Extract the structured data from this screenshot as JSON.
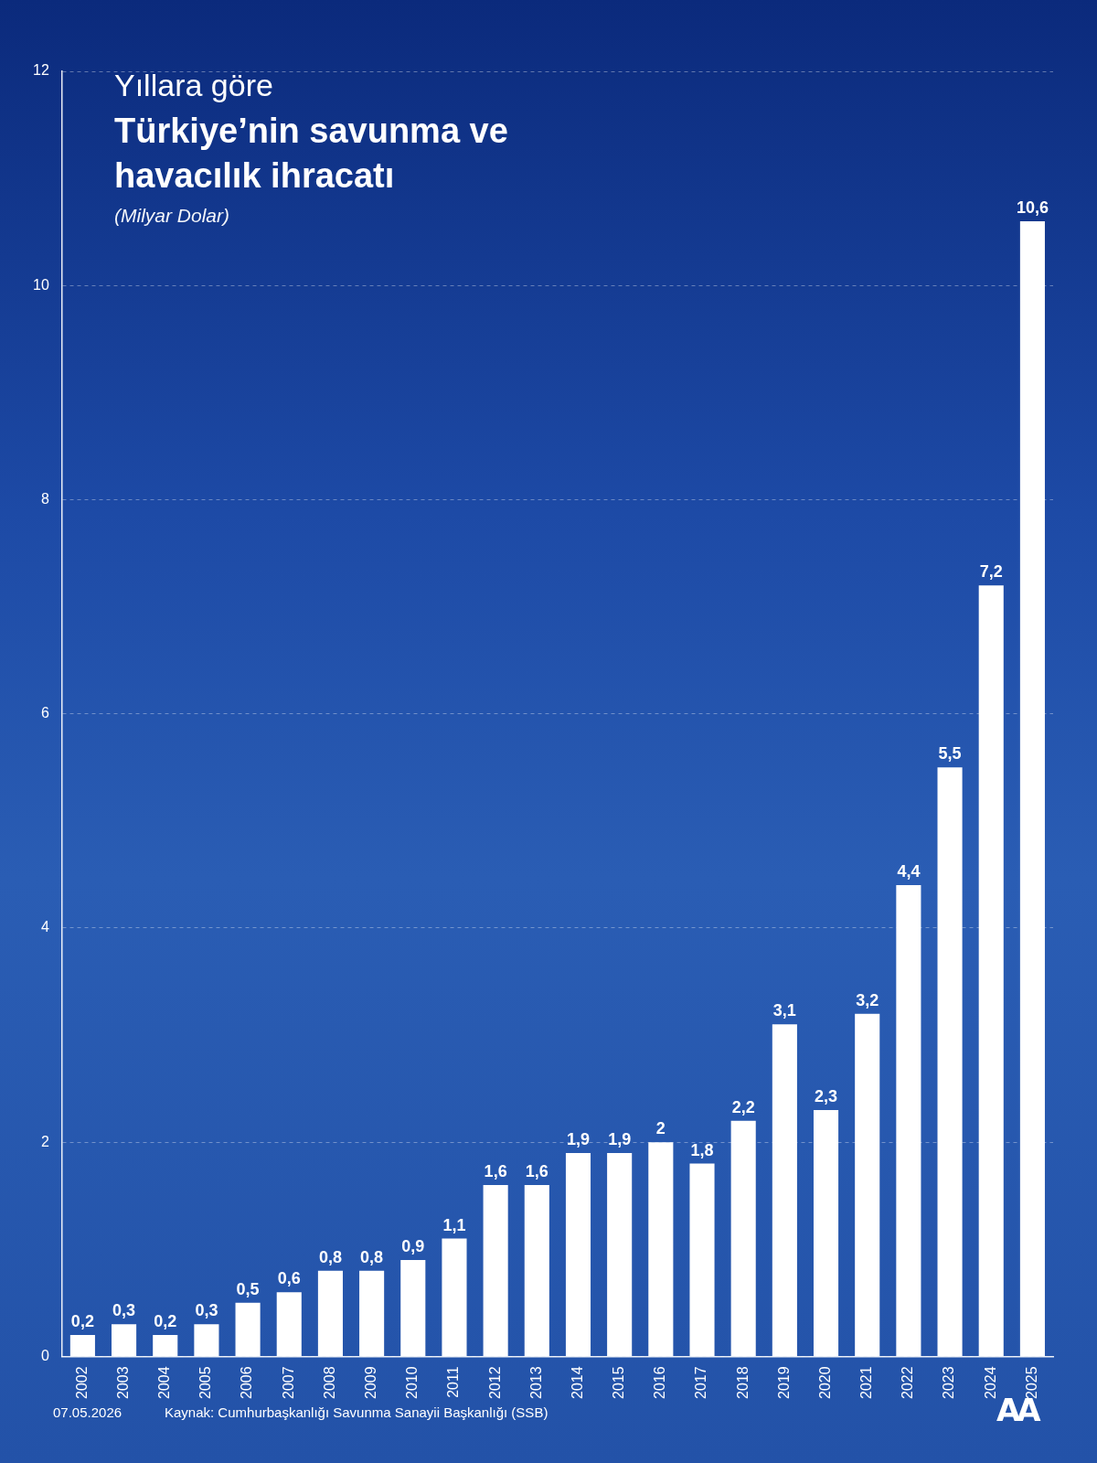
{
  "chart_data": {
    "type": "bar",
    "pretitle": "Yıllara göre",
    "title": "Türkiye’nin savunma ve havacılık ihracatı",
    "subtitle": "(Milyar Dolar)",
    "date": "07.05.2026",
    "source": "Kaynak: Cumhurbaşkanlığı Savunma Sanayii Başkanlığı (SSB)",
    "logo": "AA",
    "categories": [
      "2002",
      "2003",
      "2004",
      "2005",
      "2006",
      "2007",
      "2008",
      "2009",
      "2010",
      "2011",
      "2012",
      "2013",
      "2014",
      "2015",
      "2016",
      "2017",
      "2018",
      "2019",
      "2020",
      "2021",
      "2022",
      "2023",
      "2024",
      "2025"
    ],
    "values": [
      0.2,
      0.3,
      0.2,
      0.3,
      0.5,
      0.6,
      0.8,
      0.8,
      0.9,
      1.1,
      1.6,
      1.6,
      1.9,
      1.9,
      2,
      1.8,
      2.2,
      3.1,
      2.3,
      3.2,
      4.4,
      5.5,
      7.2,
      10.6
    ],
    "value_labels": [
      "0,2",
      "0,3",
      "0,2",
      "0,3",
      "0,5",
      "0,6",
      "0,8",
      "0,8",
      "0,9",
      "1,1",
      "1,6",
      "1,6",
      "1,9",
      "1,9",
      "2",
      "1,8",
      "2,2",
      "3,1",
      "2,3",
      "3,2",
      "4,4",
      "5,5",
      "7,2",
      "10,6"
    ],
    "color": "#ffffff",
    "ylim": [
      0,
      12
    ],
    "yticks": [
      0,
      2,
      4,
      6,
      8,
      10,
      12
    ],
    "grid": true,
    "data_labels": true
  }
}
